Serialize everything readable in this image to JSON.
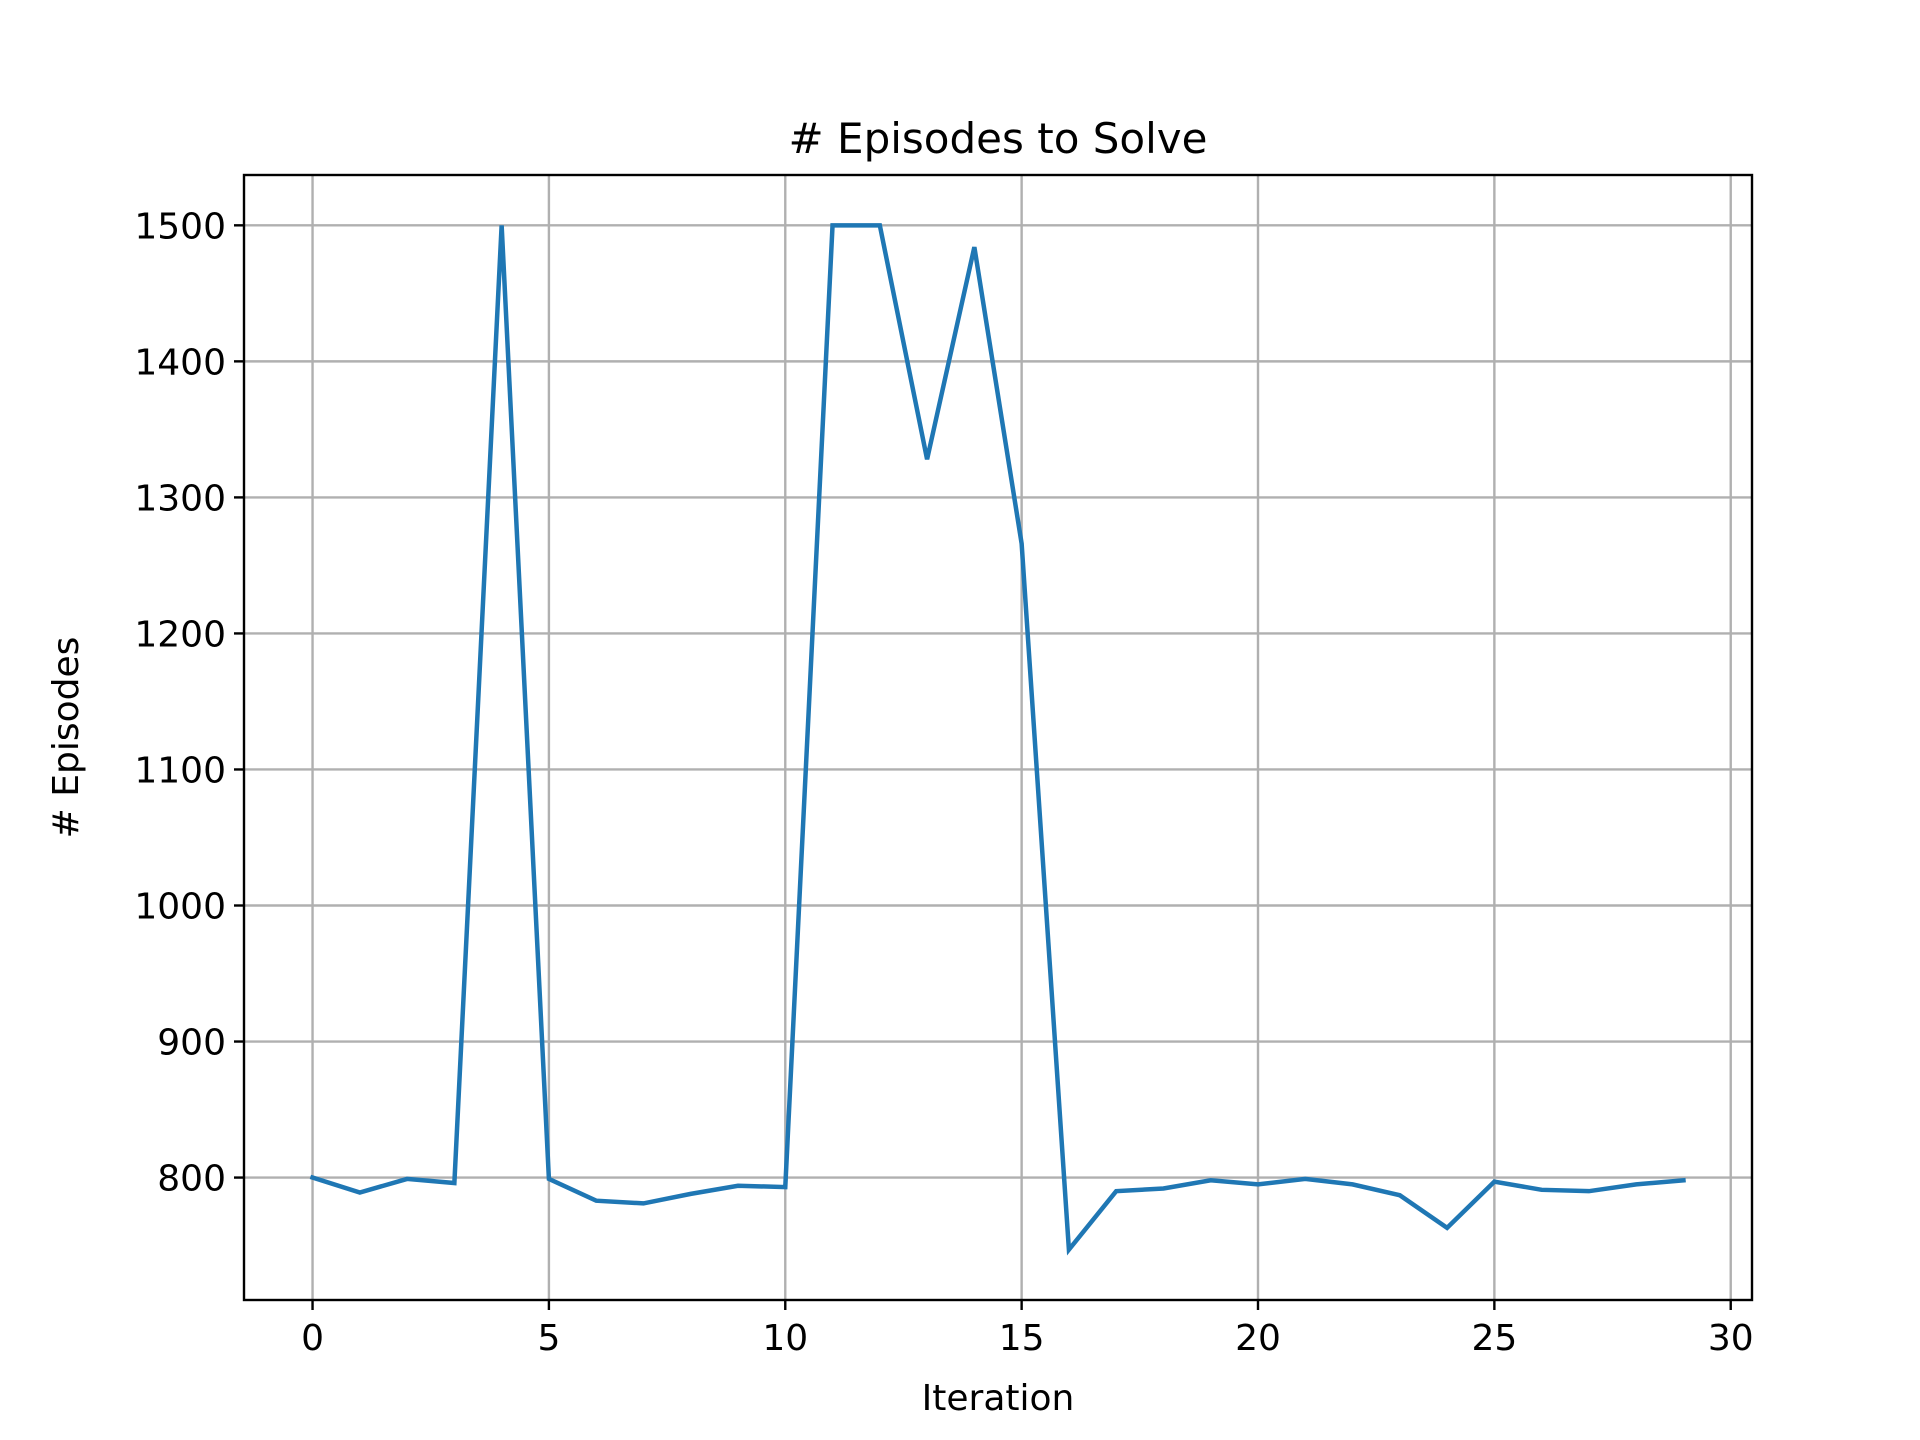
{
  "chart_data": {
    "type": "line",
    "title": "# Episodes to Solve",
    "xlabel": "Iteration",
    "ylabel": "# Episodes",
    "xlim": [
      -1.45,
      30.45
    ],
    "ylim": [
      710,
      1537
    ],
    "xticks": [
      0,
      5,
      10,
      15,
      20,
      25,
      30
    ],
    "yticks": [
      800,
      900,
      1000,
      1100,
      1200,
      1300,
      1400,
      1500
    ],
    "grid": true,
    "series": [
      {
        "color": "#1f77b4",
        "x": [
          0,
          1,
          2,
          3,
          4,
          5,
          6,
          7,
          8,
          9,
          10,
          11,
          12,
          13,
          14,
          15,
          16,
          17,
          18,
          19,
          20,
          21,
          22,
          23,
          24,
          25,
          26,
          27,
          28,
          29
        ],
        "values": [
          800,
          789,
          799,
          796,
          1500,
          799,
          783,
          781,
          788,
          794,
          793,
          1500,
          1500,
          1328,
          1484,
          1266,
          747,
          790,
          792,
          798,
          795,
          799,
          795,
          787,
          763,
          797,
          791,
          790,
          795,
          798
        ]
      }
    ]
  }
}
